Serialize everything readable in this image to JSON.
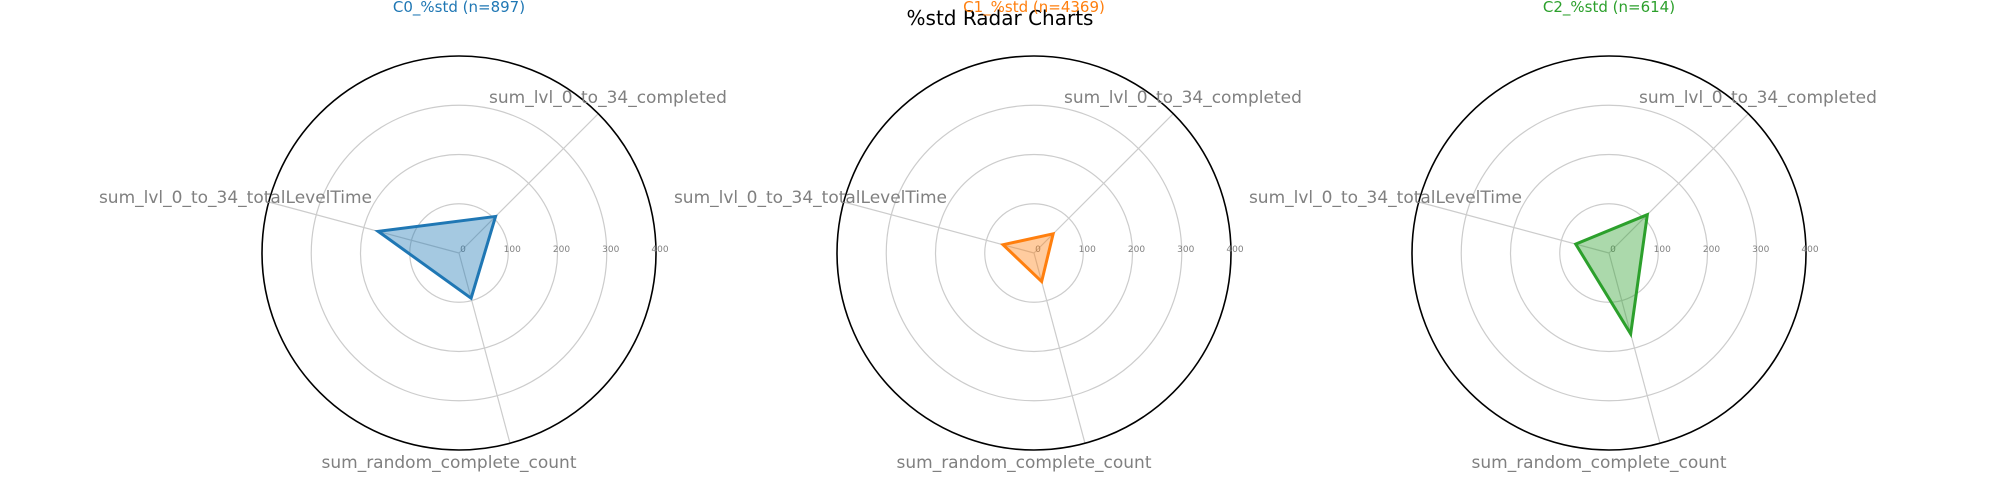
{
  "figure": {
    "suptitle": "%std Radar Charts"
  },
  "chart_data": [
    {
      "type": "radar",
      "title": "C0_%std (n=897)",
      "color": "#1f77b4",
      "axes": [
        "sum_lvl_0_to_34_completed",
        "sum_lvl_0_to_34_totalLevelTime",
        "sum_random_complete_count"
      ],
      "values": [
        105,
        170,
        95
      ],
      "rlim": [
        0,
        400
      ],
      "rticks": [
        0,
        100,
        200,
        300,
        400
      ],
      "grid": true
    },
    {
      "type": "radar",
      "title": "C1_%std (n=4369)",
      "color": "#ff7f0e",
      "axes": [
        "sum_lvl_0_to_34_completed",
        "sum_lvl_0_to_34_totalLevelTime",
        "sum_random_complete_count"
      ],
      "values": [
        55,
        65,
        60
      ],
      "rlim": [
        0,
        400
      ],
      "rticks": [
        0,
        100,
        200,
        300,
        400
      ],
      "grid": true
    },
    {
      "type": "radar",
      "title": "C2_%std (n=614)",
      "color": "#2ca02c",
      "axes": [
        "sum_lvl_0_to_34_completed",
        "sum_lvl_0_to_34_totalLevelTime",
        "sum_random_complete_count"
      ],
      "values": [
        110,
        70,
        170
      ],
      "rlim": [
        0,
        400
      ],
      "rticks": [
        0,
        100,
        200,
        300,
        400
      ],
      "grid": true
    }
  ]
}
